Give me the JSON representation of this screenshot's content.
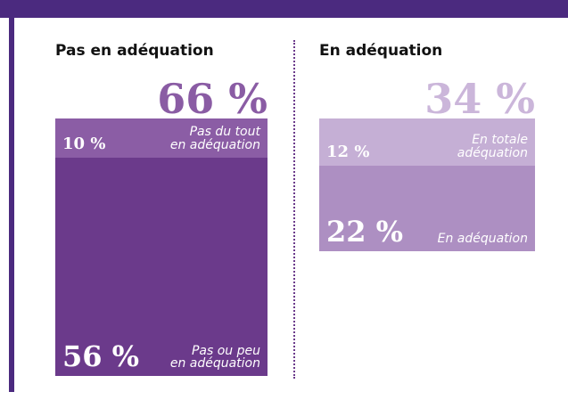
{
  "chart_data": [
    {
      "type": "stacked-bar",
      "title": "Pas en adéquation",
      "total": 66,
      "total_label": "66 %",
      "total_color": "#8a5ca4",
      "series": [
        {
          "name": "Pas du tout\nen adéquation",
          "color": "#8b5da5",
          "values": [
            10
          ],
          "value_labels": [
            "10 %"
          ]
        },
        {
          "name": "Pas ou peu\nen adéquation",
          "color": "#6b3a8b",
          "values": [
            56
          ],
          "value_labels": [
            "56 %"
          ]
        }
      ]
    },
    {
      "type": "stacked-bar",
      "title": "En adéquation",
      "total": 34,
      "total_label": "34 %",
      "total_color": "#cbb6da",
      "series": [
        {
          "name": "En totale\nadéquation",
          "color": "#c5afd5",
          "values": [
            12
          ],
          "value_labels": [
            "12 %"
          ]
        },
        {
          "name": "En adéquation",
          "color": "#ad8fc2",
          "values": [
            22
          ],
          "value_labels": [
            "22 %"
          ]
        }
      ]
    }
  ]
}
